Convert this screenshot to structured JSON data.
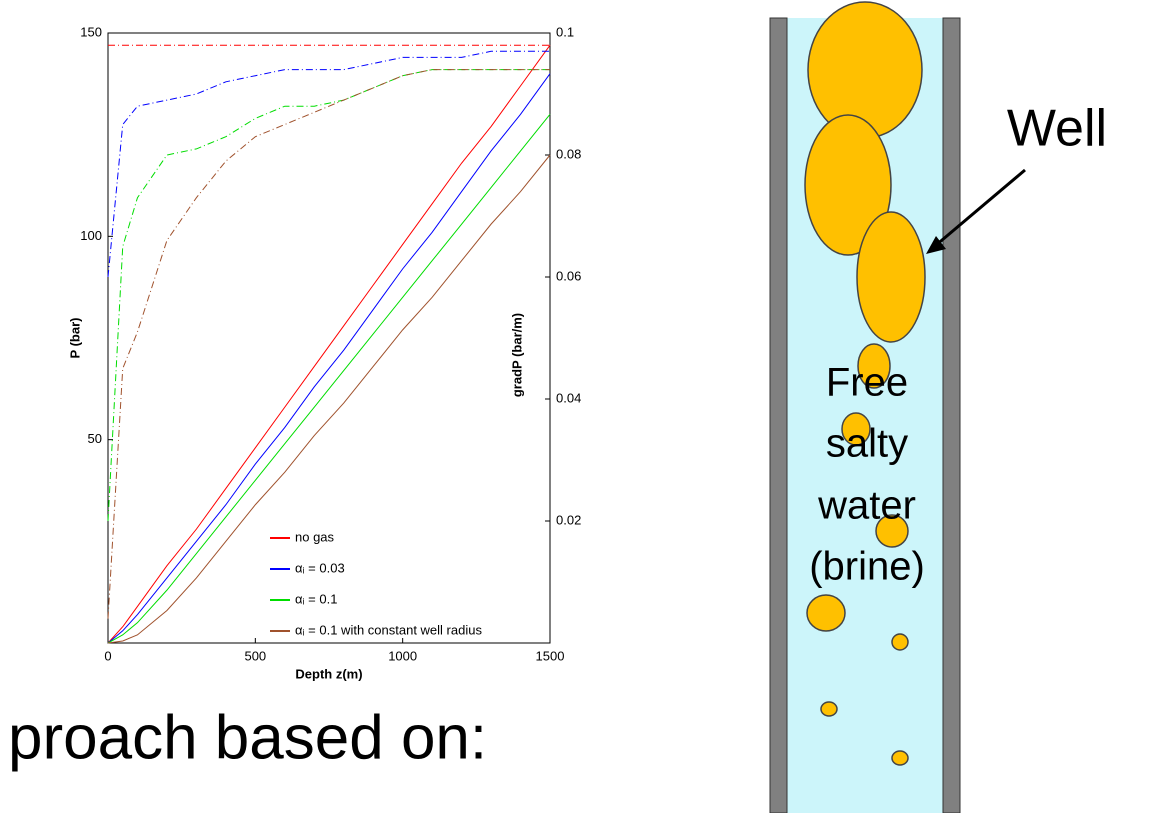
{
  "chart_data": {
    "type": "line",
    "xlabel": "Depth z(m)",
    "ylabel": "P (bar)",
    "y2label": "gradP (bar/m)",
    "x": [
      0,
      50,
      100,
      200,
      300,
      400,
      500,
      600,
      700,
      800,
      900,
      1000,
      1100,
      1200,
      1300,
      1400,
      1500
    ],
    "xlim": [
      0,
      1500
    ],
    "xticks": [
      0,
      500,
      1000,
      1500
    ],
    "ylim": [
      0,
      150
    ],
    "yticks": [
      50,
      100,
      150
    ],
    "y2lim": [
      0,
      0.1
    ],
    "y2ticks": [
      0.02,
      0.04,
      0.06,
      0.08,
      0.1
    ],
    "legend": "lower right",
    "series": [
      {
        "name": "no gas",
        "color": "#ff0000",
        "values": [
          0,
          4,
          9,
          19,
          28,
          38,
          48,
          58,
          68,
          78,
          88,
          98,
          108,
          118,
          127,
          137,
          147
        ]
      },
      {
        "name": "αᵢ = 0.03",
        "color": "#0000ff",
        "values": [
          0,
          3,
          7,
          16,
          25,
          34,
          44,
          53,
          63,
          72,
          82,
          92,
          101,
          111,
          121,
          130,
          140
        ]
      },
      {
        "name": "αᵢ = 0.1",
        "color": "#00dd00",
        "values": [
          0,
          2,
          5,
          13,
          22,
          31,
          40,
          49,
          58,
          67,
          76,
          85,
          94,
          103,
          112,
          121,
          130
        ]
      },
      {
        "name": "αᵢ = 0.1 with constant well radius",
        "color": "#a0522d",
        "values": [
          0,
          0.5,
          2,
          8,
          16,
          25,
          34,
          42,
          51,
          59,
          68,
          77,
          85,
          94,
          103,
          111,
          120
        ]
      },
      {
        "color": "#ff0000",
        "axis": "y2",
        "linestyle": "dashdot",
        "values": [
          0.098,
          0.098,
          0.098,
          0.098,
          0.098,
          0.098,
          0.098,
          0.098,
          0.098,
          0.098,
          0.098,
          0.098,
          0.098,
          0.098,
          0.098,
          0.098,
          0.098
        ]
      },
      {
        "color": "#0000ff",
        "axis": "y2",
        "linestyle": "dashdot",
        "values": [
          0.06,
          0.085,
          0.088,
          0.089,
          0.09,
          0.092,
          0.093,
          0.094,
          0.094,
          0.094,
          0.095,
          0.096,
          0.096,
          0.096,
          0.097,
          0.097,
          0.097
        ]
      },
      {
        "color": "#00dd00",
        "axis": "y2",
        "linestyle": "dashdot",
        "values": [
          0.02,
          0.065,
          0.073,
          0.08,
          0.081,
          0.083,
          0.086,
          0.088,
          0.088,
          0.089,
          0.091,
          0.093,
          0.094,
          0.094,
          0.094,
          0.094,
          0.094
        ]
      },
      {
        "color": "#a0522d",
        "axis": "y2",
        "linestyle": "dashdot",
        "values": [
          0.004,
          0.045,
          0.051,
          0.066,
          0.073,
          0.079,
          0.083,
          0.085,
          0.087,
          0.089,
          0.091,
          0.093,
          0.094,
          0.094,
          0.094,
          0.094,
          0.094
        ]
      }
    ]
  },
  "slide_text": "proach based on:",
  "diagram": {
    "label": "Well",
    "caption": [
      "Free",
      "salty",
      "water",
      "(brine)"
    ]
  }
}
